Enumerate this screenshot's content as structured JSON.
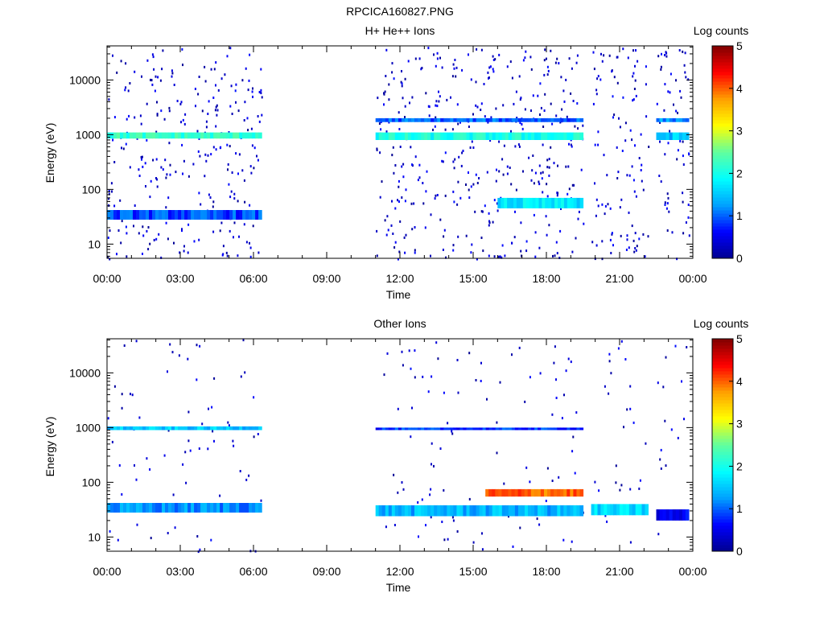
{
  "title": "RPCICA160827.PNG",
  "colors": {
    "cmap": [
      "#00008f",
      "#0000ff",
      "#00a0ff",
      "#00ffff",
      "#60ff9f",
      "#ffff00",
      "#ff9f00",
      "#ff0000",
      "#800000"
    ]
  },
  "chart_data": [
    {
      "type": "heatmap",
      "title": "H+ He++ Ions",
      "xlabel": "Time",
      "ylabel": "Energy (eV)",
      "yscale": "log",
      "ylim": [
        5.5,
        42000
      ],
      "xlim_hours": [
        0,
        24
      ],
      "xticks": [
        "00:00",
        "03:00",
        "06:00",
        "09:00",
        "12:00",
        "15:00",
        "18:00",
        "21:00",
        "00:00"
      ],
      "yticks": [
        "10",
        "100",
        "1000",
        "10000"
      ],
      "colorbar": {
        "label": "Log counts",
        "range": [
          0,
          5
        ],
        "ticks": [
          "0",
          "1",
          "2",
          "3",
          "4",
          "5"
        ]
      },
      "data_intervals": [
        [
          "00:00",
          "06:20"
        ],
        [
          "11:00",
          "19:30"
        ],
        [
          "19:50",
          "22:10"
        ],
        [
          "22:30",
          "23:50"
        ]
      ],
      "features": [
        {
          "description": "Band near 1000 eV",
          "time": [
            "00:00",
            "06:20"
          ],
          "energy_ev": [
            850,
            1100
          ],
          "log_counts": 2.2
        },
        {
          "description": "Band near 1000 eV",
          "time": [
            "11:00",
            "19:30"
          ],
          "energy_ev": [
            800,
            1100
          ],
          "log_counts": 2.0
        },
        {
          "description": "Band near 1000 eV",
          "time": [
            "22:30",
            "23:50"
          ],
          "energy_ev": [
            800,
            1100
          ],
          "log_counts": 1.5
        },
        {
          "description": "Band near 1800 eV",
          "time": [
            "11:00",
            "19:30"
          ],
          "energy_ev": [
            1700,
            2000
          ],
          "log_counts": 1.0
        },
        {
          "description": "Band near 1800 eV",
          "time": [
            "22:30",
            "23:50"
          ],
          "energy_ev": [
            1700,
            2000
          ],
          "log_counts": 1.2
        },
        {
          "description": "Low energy band ~30 eV",
          "time": [
            "00:00",
            "06:20"
          ],
          "energy_ev": [
            28,
            42
          ],
          "log_counts": 0.9
        },
        {
          "description": "Band ~55 eV",
          "time": [
            "16:00",
            "19:30"
          ],
          "energy_ev": [
            45,
            70
          ],
          "log_counts": 1.7
        }
      ]
    },
    {
      "type": "heatmap",
      "title": "Other Ions",
      "xlabel": "Time",
      "ylabel": "Energy (eV)",
      "yscale": "log",
      "ylim": [
        5.5,
        42000
      ],
      "xlim_hours": [
        0,
        24
      ],
      "xticks": [
        "00:00",
        "03:00",
        "06:00",
        "09:00",
        "12:00",
        "15:00",
        "18:00",
        "21:00",
        "00:00"
      ],
      "yticks": [
        "10",
        "100",
        "1000",
        "10000"
      ],
      "colorbar": {
        "label": "Log counts",
        "range": [
          0,
          5
        ],
        "ticks": [
          "0",
          "1",
          "2",
          "3",
          "4",
          "5"
        ]
      },
      "data_intervals": [
        [
          "00:00",
          "06:20"
        ],
        [
          "11:00",
          "19:30"
        ],
        [
          "19:50",
          "22:10"
        ],
        [
          "22:30",
          "23:50"
        ]
      ],
      "features": [
        {
          "description": "Band near 1000 eV",
          "time": [
            "00:00",
            "06:20"
          ],
          "energy_ev": [
            900,
            1050
          ],
          "log_counts": 1.5
        },
        {
          "description": "Band near 1000 eV",
          "time": [
            "11:00",
            "19:30"
          ],
          "energy_ev": [
            900,
            1000
          ],
          "log_counts": 0.8
        },
        {
          "description": "Low energy band ~30 eV",
          "time": [
            "00:00",
            "06:20"
          ],
          "energy_ev": [
            28,
            42
          ],
          "log_counts": 1.2
        },
        {
          "description": "Low energy band ~28 eV",
          "time": [
            "11:00",
            "19:30"
          ],
          "energy_ev": [
            24,
            38
          ],
          "log_counts": 1.4
        },
        {
          "description": "Intense band ~60 eV",
          "time": [
            "15:30",
            "19:30"
          ],
          "energy_ev": [
            55,
            75
          ],
          "log_counts": 4.0
        },
        {
          "description": "Band ~30 eV",
          "time": [
            "19:50",
            "22:10"
          ],
          "energy_ev": [
            25,
            40
          ],
          "log_counts": 1.6
        },
        {
          "description": "Band ~25 eV",
          "time": [
            "22:30",
            "23:50"
          ],
          "energy_ev": [
            20,
            32
          ],
          "log_counts": 0.5
        }
      ]
    }
  ]
}
